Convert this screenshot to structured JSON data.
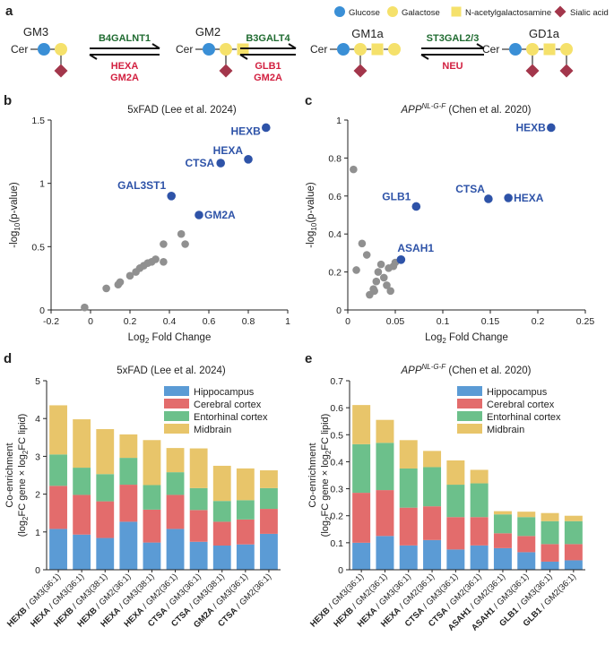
{
  "panel_labels": {
    "a": "a",
    "b": "b",
    "c": "c",
    "d": "d",
    "e": "e"
  },
  "colors": {
    "glucose": "#3a8fd6",
    "galactose": "#f5e16b",
    "galnac": "#f5e16b",
    "sialic": "#a3364b",
    "enzyme_fwd": "#1f6b30",
    "enzyme_rev": "#d22040",
    "highlight": "#2e53a8",
    "gray": "#909090",
    "hippocampus": "#5b9bd5",
    "cerebral": "#e36c6c",
    "entorhinal": "#6cc08b",
    "midbrain": "#e8c56a"
  },
  "legend_a": [
    "Glucose",
    "Galactose",
    "N-acetylgalactosamine",
    "Sialic acid"
  ],
  "pathway": {
    "cer": "Cer",
    "names": [
      "GM3",
      "GM2",
      "GM1a",
      "GD1a"
    ],
    "fwd": [
      "B4GALNT1",
      "B3GALT4",
      "ST3GAL2/3"
    ],
    "rev": [
      [
        "HEXA",
        "GM2A"
      ],
      [
        "GLB1",
        "GM2A"
      ],
      [
        "NEU"
      ]
    ]
  },
  "chart_data": [
    {
      "id": "b",
      "type": "scatter",
      "title": "5xFAD (Lee et al. 2024)",
      "xlabel": "Log2 Fold Change",
      "ylabel": "-log10(p-value)",
      "xlim": [
        -0.2,
        1
      ],
      "ylim": [
        0,
        1.5
      ],
      "xticks": [
        "-0.2",
        "0",
        "0.2",
        "0.4",
        "0.6",
        "0.8",
        "1"
      ],
      "yticks": [
        "0",
        "0.5",
        "1",
        "1.5"
      ],
      "gray_points": [
        [
          -0.03,
          0.02
        ],
        [
          0.08,
          0.17
        ],
        [
          0.14,
          0.2
        ],
        [
          0.15,
          0.22
        ],
        [
          0.2,
          0.27
        ],
        [
          0.23,
          0.3
        ],
        [
          0.25,
          0.33
        ],
        [
          0.27,
          0.35
        ],
        [
          0.29,
          0.37
        ],
        [
          0.31,
          0.38
        ],
        [
          0.33,
          0.4
        ],
        [
          0.37,
          0.52
        ],
        [
          0.37,
          0.38
        ],
        [
          0.46,
          0.6
        ],
        [
          0.48,
          0.52
        ]
      ],
      "labeled_points": [
        {
          "label": "HEXB",
          "x": 0.89,
          "y": 1.44
        },
        {
          "label": "HEXA",
          "x": 0.8,
          "y": 1.19
        },
        {
          "label": "CTSA",
          "x": 0.66,
          "y": 1.16
        },
        {
          "label": "GAL3ST1",
          "x": 0.41,
          "y": 0.9
        },
        {
          "label": "GM2A",
          "x": 0.55,
          "y": 0.75
        }
      ]
    },
    {
      "id": "c",
      "type": "scatter",
      "title_gene": "APP",
      "title_sup": "NL-G-F",
      "title_rest": " (Chen et al. 2020)",
      "xlabel": "Log2 Fold Change",
      "ylabel": "-log10(p-value)",
      "xlim": [
        0,
        0.25
      ],
      "ylim": [
        0,
        1
      ],
      "xticks": [
        "0",
        "0.05",
        "0.1",
        "0.15",
        "0.2",
        "0.25"
      ],
      "yticks": [
        "0",
        "0.2",
        "0.4",
        "0.6",
        "0.8",
        "1"
      ],
      "gray_points": [
        [
          0.006,
          0.74
        ],
        [
          0.015,
          0.35
        ],
        [
          0.009,
          0.21
        ],
        [
          0.02,
          0.29
        ],
        [
          0.023,
          0.08
        ],
        [
          0.027,
          0.11
        ],
        [
          0.03,
          0.15
        ],
        [
          0.032,
          0.2
        ],
        [
          0.035,
          0.24
        ],
        [
          0.038,
          0.17
        ],
        [
          0.041,
          0.13
        ],
        [
          0.043,
          0.22
        ],
        [
          0.045,
          0.1
        ],
        [
          0.048,
          0.23
        ],
        [
          0.05,
          0.25
        ],
        [
          0.028,
          0.1
        ]
      ],
      "labeled_points": [
        {
          "label": "HEXB",
          "x": 0.214,
          "y": 0.96
        },
        {
          "label": "HEXA",
          "x": 0.169,
          "y": 0.59
        },
        {
          "label": "CTSA",
          "x": 0.148,
          "y": 0.585
        },
        {
          "label": "GLB1",
          "x": 0.072,
          "y": 0.545
        },
        {
          "label": "ASAH1",
          "x": 0.056,
          "y": 0.265
        }
      ]
    },
    {
      "id": "d",
      "type": "bar",
      "stacked": true,
      "title": "5xFAD (Lee et al. 2024)",
      "ylabel": "Co-enrichment",
      "ylabel2": "(log2FC gene × log2FC lipid)",
      "ylim": [
        0,
        5
      ],
      "yticks": [
        "0",
        "1",
        "2",
        "3",
        "4",
        "5"
      ],
      "categories": [
        {
          "gene": "HEXB",
          "lipid": " / GM3(36:1)"
        },
        {
          "gene": "HEXA",
          "lipid": " / GM3(36:1)"
        },
        {
          "gene": "HEXB",
          "lipid": " / GM3(38:1)"
        },
        {
          "gene": "HEXB",
          "lipid": " / GM2(36:1)"
        },
        {
          "gene": "HEXA",
          "lipid": " / GM3(38:1)"
        },
        {
          "gene": "HEXA",
          "lipid": " / GM2(36:1)"
        },
        {
          "gene": "CTSA",
          "lipid": " / GM3(36:1)"
        },
        {
          "gene": "CTSA",
          "lipid": " / GM3(38:1)"
        },
        {
          "gene": "GM2A",
          "lipid": " / GM3(36:1)"
        },
        {
          "gene": "CTSA",
          "lipid": " / GM2(36:1)"
        }
      ],
      "series": [
        {
          "name": "Hippocampus",
          "values": [
            1.08,
            0.93,
            0.84,
            1.27,
            0.72,
            1.08,
            0.74,
            0.64,
            0.67,
            0.95
          ]
        },
        {
          "name": "Cerebral cortex",
          "values": [
            1.14,
            1.05,
            0.97,
            0.98,
            0.87,
            0.9,
            0.84,
            0.63,
            0.66,
            0.66
          ]
        },
        {
          "name": "Entorhinal cortex",
          "values": [
            0.83,
            0.72,
            0.72,
            0.71,
            0.65,
            0.6,
            0.58,
            0.55,
            0.51,
            0.55
          ]
        },
        {
          "name": "Midbrain",
          "values": [
            1.3,
            1.28,
            1.19,
            0.62,
            1.19,
            0.64,
            1.05,
            0.93,
            0.84,
            0.47
          ]
        }
      ]
    },
    {
      "id": "e",
      "type": "bar",
      "stacked": true,
      "title_gene": "APP",
      "title_sup": "NL-G-F",
      "title_rest": " (Chen et al. 2020)",
      "ylabel": "Co-enrichment",
      "ylabel2": "(log2FC gene × log2FC lipid)",
      "ylim": [
        0,
        0.7
      ],
      "yticks": [
        "0",
        "0.1",
        "0.2",
        "0.3",
        "0.4",
        "0.5",
        "0.6",
        "0.7"
      ],
      "categories": [
        {
          "gene": "HEXB",
          "lipid": " / GM3(36:1)"
        },
        {
          "gene": "HEXB",
          "lipid": " / GM2(36:1)"
        },
        {
          "gene": "HEXA",
          "lipid": " / GM3(36:1)"
        },
        {
          "gene": "HEXA",
          "lipid": " / GM2(36:1)"
        },
        {
          "gene": "CTSA",
          "lipid": " / GM3(36:1)"
        },
        {
          "gene": "CTSA",
          "lipid": " / GM2(36:1)"
        },
        {
          "gene": "ASAH1",
          "lipid": " / GM2(36:1)"
        },
        {
          "gene": "ASAH1",
          "lipid": " / GM3(36:1)"
        },
        {
          "gene": "GLB1",
          "lipid": " / GM3(36:1)"
        },
        {
          "gene": "GLB1",
          "lipid": " / GM2(36:1)"
        }
      ],
      "series": [
        {
          "name": "Hippocampus",
          "values": [
            0.1,
            0.125,
            0.09,
            0.11,
            0.075,
            0.09,
            0.08,
            0.065,
            0.03,
            0.035
          ]
        },
        {
          "name": "Cerebral cortex",
          "values": [
            0.185,
            0.17,
            0.14,
            0.125,
            0.12,
            0.105,
            0.055,
            0.06,
            0.065,
            0.06
          ]
        },
        {
          "name": "Entorhinal cortex",
          "values": [
            0.18,
            0.175,
            0.145,
            0.145,
            0.12,
            0.125,
            0.07,
            0.07,
            0.085,
            0.085
          ]
        },
        {
          "name": "Midbrain",
          "values": [
            0.145,
            0.085,
            0.105,
            0.06,
            0.09,
            0.05,
            0.012,
            0.02,
            0.03,
            0.02
          ]
        }
      ]
    }
  ]
}
